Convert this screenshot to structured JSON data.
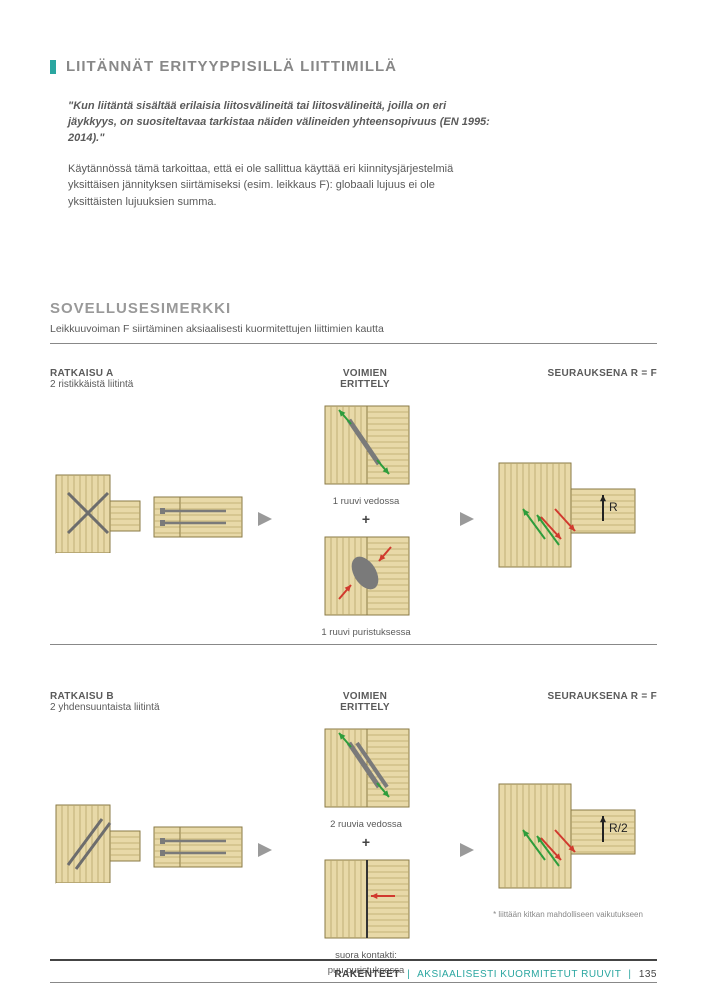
{
  "colors": {
    "accent": "#2aa6a0",
    "wood_light": "#e8d9a8",
    "wood_line": "#b7a56a",
    "wood_dark_line": "#8a7a46",
    "grey": "#6d6d6d",
    "screw": "#7a7a7a",
    "arrow_green": "#2e9d3c",
    "arrow_red": "#d13a2e",
    "arrow_black": "#222222",
    "text": "#5a5a5a",
    "title_grey": "#888888",
    "divider": "#888888",
    "triangle": "#9a9a9a"
  },
  "header": {
    "title": "LIITÄNNÄT ERITYYPPISILLÄ LIITTIMILLÄ",
    "quote": "\"Kun liitäntä sisältää erilaisia liitosvälineitä tai liitosvälineitä, joilla on eri jäykkyys, on suositeltavaa tarkistaa näiden välineiden yhteensopivuus (EN 1995: 2014).\"",
    "body": "Käytännössä tämä tarkoittaa, että ei ole sallittua käyttää eri kiinnitysjärjestelmiä yksittäisen jännityksen siirtämiseksi (esim. leikkaus F): globaali lujuus ei ole yksittäisten lujuuksien summa."
  },
  "example": {
    "title": "SOVELLUSESIMERKKI",
    "subtitle": "Leikkuuvoiman F siirtäminen aksiaalisesti kuormitettujen liittimien kautta"
  },
  "solutions": [
    {
      "label": "RATKAISU A",
      "sub": "2 ristikkäistä liitintä",
      "center_label": "VOIMIEN ERITTELY",
      "right_label": "SEURAUKSENA R = F",
      "top_caption": "1 ruuvi vedossa",
      "bottom_caption": "1 ruuvi puristuksessa",
      "bottom_caption2": "",
      "result_label": "R",
      "left_main_type": "cross"
    },
    {
      "label": "RATKAISU B",
      "sub": "2 yhdensuuntaista liitintä",
      "center_label": "VOIMIEN ERITTELY",
      "right_label": "SEURAUKSENA R = F",
      "top_caption": "2 ruuvia vedossa",
      "bottom_caption": "suora kontakti:",
      "bottom_caption2": "puu puristuksessa",
      "result_label": "R/2",
      "left_main_type": "parallel",
      "footnote": "* liittään kitkan mahdolliseen vaikutukseen"
    }
  ],
  "footer": {
    "left": "RAKENTEET",
    "right": "AKSIAALISESTI KUORMITETUT RUUVIT",
    "page": "135"
  },
  "diagram_style": {
    "wood_hatch_spacing": 6,
    "stroke_width": 1.2,
    "screw_stroke_width": 4,
    "arrow_stroke_width": 2,
    "triangle_size": 14
  }
}
